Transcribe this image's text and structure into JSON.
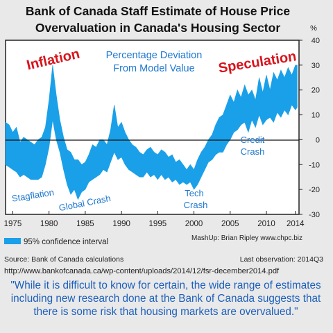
{
  "title_line1": "Bank of Canada Staff Estimate of House Price",
  "title_line2": "Overvaluation in Canada's Housing Sector",
  "chart_data": {
    "type": "area",
    "y_unit": "%",
    "ylim": [
      -30,
      40
    ],
    "xlim": [
      1974,
      2014.5
    ],
    "y_ticks": [
      "40",
      "30",
      "20",
      "10",
      "0",
      "-10",
      "-20",
      "-30"
    ],
    "x_ticks": [
      "1975",
      "1980",
      "1985",
      "1990",
      "1995",
      "2000",
      "2005",
      "2010",
      "2014"
    ],
    "series": [
      {
        "name": "95% confidence interval",
        "color": "#1aa0e8",
        "x": [
          1974.0,
          1974.5,
          1975.0,
          1975.5,
          1976.0,
          1976.5,
          1977.0,
          1977.5,
          1978.0,
          1978.5,
          1979.0,
          1979.5,
          1980.0,
          1980.5,
          1981.0,
          1981.5,
          1982.0,
          1982.5,
          1983.0,
          1983.5,
          1984.0,
          1984.5,
          1985.0,
          1985.5,
          1986.0,
          1986.5,
          1987.0,
          1987.5,
          1988.0,
          1988.5,
          1989.0,
          1989.5,
          1990.0,
          1990.5,
          1991.0,
          1991.5,
          1992.0,
          1992.5,
          1993.0,
          1993.5,
          1994.0,
          1994.5,
          1995.0,
          1995.5,
          1996.0,
          1996.5,
          1997.0,
          1997.5,
          1998.0,
          1998.5,
          1999.0,
          1999.5,
          2000.0,
          2000.5,
          2001.0,
          2001.5,
          2002.0,
          2002.5,
          2003.0,
          2003.5,
          2004.0,
          2004.5,
          2005.0,
          2005.5,
          2006.0,
          2006.5,
          2007.0,
          2007.5,
          2008.0,
          2008.5,
          2009.0,
          2009.5,
          2010.0,
          2010.5,
          2011.0,
          2011.5,
          2012.0,
          2012.5,
          2013.0,
          2013.5,
          2014.0,
          2014.25
        ],
        "upper": [
          7,
          6,
          3,
          5,
          -1,
          1,
          0,
          -1,
          -2,
          0,
          1,
          5,
          16,
          30,
          18,
          8,
          1,
          -4,
          -5,
          -8,
          -8,
          -10,
          -9,
          -6,
          -2,
          -3,
          0,
          0,
          -2,
          4,
          14,
          5,
          7,
          3,
          0,
          -2,
          -3,
          -5,
          -6,
          -4,
          -3,
          -5,
          -6,
          -4,
          -5,
          -7,
          -6,
          -9,
          -8,
          -10,
          -12,
          -10,
          -12,
          -8,
          -5,
          -3,
          0,
          2,
          6,
          9,
          10,
          14,
          18,
          15,
          20,
          17,
          22,
          18,
          20,
          16,
          25,
          19,
          26,
          20,
          27,
          24,
          28,
          25,
          29,
          26,
          30,
          30
        ],
        "lower": [
          -10,
          -11,
          -12,
          -13,
          -15,
          -14,
          -15,
          -16,
          -16,
          -16,
          -15,
          -10,
          -3,
          8,
          0,
          -5,
          -12,
          -18,
          -22,
          -20,
          -24,
          -21,
          -20,
          -17,
          -16,
          -15,
          -14,
          -12,
          -13,
          -9,
          -5,
          -8,
          -7,
          -10,
          -12,
          -13,
          -14,
          -15,
          -15,
          -13,
          -15,
          -14,
          -16,
          -14,
          -16,
          -15,
          -17,
          -16,
          -18,
          -17,
          -18,
          -17,
          -20,
          -18,
          -15,
          -12,
          -9,
          -8,
          -6,
          -5,
          -5,
          -2,
          0,
          3,
          4,
          6,
          7,
          3,
          8,
          5,
          10,
          6,
          8,
          9,
          7,
          11,
          9,
          12,
          10,
          14,
          12,
          13
        ]
      }
    ],
    "legend": {
      "position": "bottom-left",
      "label": "95% confidence interval"
    },
    "annotations": {
      "inflation": "Inflation",
      "speculation": "Speculation",
      "deviation_line1": "Percentage Deviation",
      "deviation_line2": "From Model Value",
      "stagflation": "Stagflation",
      "global_crash": "Global Crash",
      "tech": "Tech",
      "crash": "Crash",
      "credit": "Credit",
      "credit_crash": "Crash",
      "mashup": "MashUp: Brian Ripley www.chpc.biz"
    },
    "grid": false
  },
  "footer": {
    "source": "Source: Bank of Canada calculations",
    "last_observation": "Last observation: 2014Q3",
    "url": "http://www.bankofcanada.ca/wp-content/uploads/2014/12/fsr-december2014.pdf"
  },
  "quote": "\"While it is difficult to know for certain, the wide range of estimates including new research done at the Bank of Canada suggests that there is some risk that housing markets are overvalued.\"",
  "colors": {
    "band": "#1aa0e8",
    "annotation_red": "#d8141c",
    "annotation_blue": "#1e78d0",
    "quote_blue": "#1c5fbd",
    "background": "#e9e9e9"
  }
}
